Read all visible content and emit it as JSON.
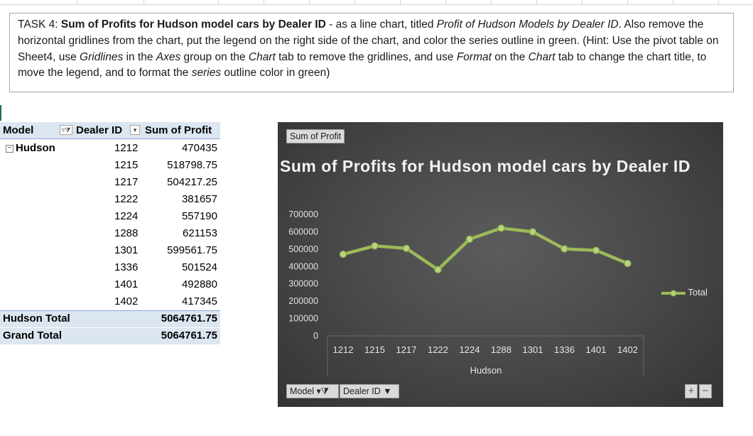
{
  "task": {
    "prefix": "TASK 4: ",
    "bold": "Sum of Profits for Hudson model cars by Dealer ID",
    "t1": " - as a line chart, titled ",
    "i1": "Profit of Hudson Models by Dealer ID",
    "t2": ". Also remove the horizontal gridlines from the chart, put the legend on the right side of the chart, and color the series outline in green. (Hint: Use the pivot table on Sheet4, use ",
    "i2": "Gridlines",
    "t3": " in the ",
    "i3": "Axes",
    "t4": " group on the ",
    "i4": "Chart",
    "t5": " tab to remove the gridlines, and use ",
    "i5": "Format",
    "t6": " on the ",
    "i6": "Chart",
    "t7": " tab to change the chart title, to move the legend, and to format the ",
    "i7": "series",
    "t8": " outline color in green)"
  },
  "pivot": {
    "headers": {
      "model": "Model",
      "dealer": "Dealer ID",
      "sum": "Sum of Profit"
    },
    "group": "Hudson",
    "collapse_glyph": "−",
    "rows": [
      {
        "dealer": "1212",
        "profit": "470435"
      },
      {
        "dealer": "1215",
        "profit": "518798.75"
      },
      {
        "dealer": "1217",
        "profit": "504217.25"
      },
      {
        "dealer": "1222",
        "profit": "381657"
      },
      {
        "dealer": "1224",
        "profit": "557190"
      },
      {
        "dealer": "1288",
        "profit": "621153"
      },
      {
        "dealer": "1301",
        "profit": "599561.75"
      },
      {
        "dealer": "1336",
        "profit": "501524"
      },
      {
        "dealer": "1401",
        "profit": "492880"
      },
      {
        "dealer": "1402",
        "profit": "417345"
      }
    ],
    "subtotal": {
      "label": "Hudson Total",
      "value": "5064761.75"
    },
    "grand": {
      "label": "Grand Total",
      "value": "5064761.75"
    }
  },
  "chart": {
    "field_value_button": "Sum of Profit",
    "model_button": "Model",
    "dealer_button": "Dealer ID",
    "plus": "+",
    "minus": "−",
    "legend_label": "Total",
    "accent_color": "#9bbb59",
    "background_color": "#474747"
  },
  "chart_data": {
    "type": "line",
    "title": "Sum of Profits for Hudson model cars by Dealer ID",
    "categories": [
      "1212",
      "1215",
      "1217",
      "1222",
      "1224",
      "1288",
      "1301",
      "1336",
      "1401",
      "1402"
    ],
    "category_group": "Hudson",
    "series": [
      {
        "name": "Total",
        "values": [
          470435,
          518798.75,
          504217.25,
          381657,
          557190,
          621153,
          599561.75,
          501524,
          492880,
          417345
        ]
      }
    ],
    "yticks": [
      "700000",
      "600000",
      "500000",
      "400000",
      "300000",
      "200000",
      "100000",
      "0"
    ],
    "ylim": [
      0,
      700000
    ],
    "grid": false,
    "legend": "right"
  }
}
